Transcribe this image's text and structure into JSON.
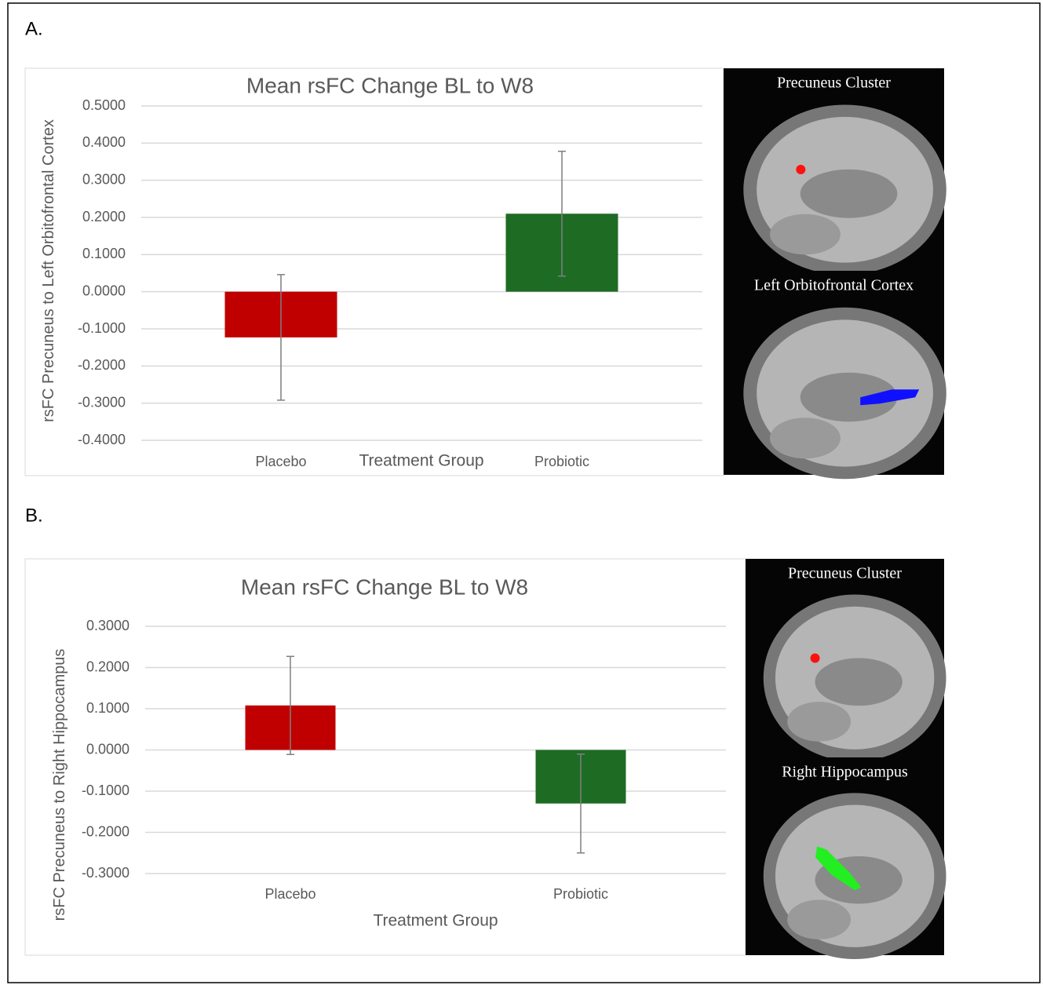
{
  "chart_data": [
    {
      "type": "bar",
      "panel_label": "A.",
      "title": "Mean rsFC Change BL to W8",
      "x_label": "Treatment Group",
      "y_label": "rsFC Precuneus to Left Orbitofrontal Cortex",
      "categories": [
        "Placebo",
        "Probiotic"
      ],
      "values": [
        -0.123,
        0.21
      ],
      "errors": [
        0.169,
        0.168
      ],
      "colors": [
        "#c00000",
        "#1e6b24"
      ],
      "ylim": [
        -0.4,
        0.5
      ],
      "yticks": [
        {
          "value": -0.4,
          "label": "-0.4000"
        },
        {
          "value": -0.3,
          "label": "-0.3000"
        },
        {
          "value": -0.2,
          "label": "-0.2000"
        },
        {
          "value": -0.1,
          "label": "-0.1000"
        },
        {
          "value": 0,
          "label": "0.0000"
        },
        {
          "value": 0.1,
          "label": "0.1000"
        },
        {
          "value": 0.2,
          "label": "0.2000"
        },
        {
          "value": 0.3,
          "label": "0.3000"
        },
        {
          "value": 0.4,
          "label": "0.4000"
        },
        {
          "value": 0.5,
          "label": "0.5000"
        }
      ],
      "grid": true,
      "image_labels": [
        "Precuneus Cluster",
        "Left Orbitofrontal Cortex"
      ]
    },
    {
      "type": "bar",
      "panel_label": "B.",
      "title": "Mean rsFC Change BL to W8",
      "x_label": "Treatment Group",
      "y_label": "rsFC Precuneus to Right Hippocampus",
      "categories": [
        "Placebo",
        "Probiotic"
      ],
      "values": [
        0.108,
        -0.13
      ],
      "errors": [
        0.119,
        0.12
      ],
      "colors": [
        "#c00000",
        "#1e6b24"
      ],
      "ylim": [
        -0.3,
        0.3
      ],
      "yticks": [
        {
          "value": -0.3,
          "label": "-0.3000"
        },
        {
          "value": -0.2,
          "label": "-0.2000"
        },
        {
          "value": -0.1,
          "label": "-0.1000"
        },
        {
          "value": 0,
          "label": "0.0000"
        },
        {
          "value": 0.1,
          "label": "0.1000"
        },
        {
          "value": 0.2,
          "label": "0.2000"
        },
        {
          "value": 0.3,
          "label": "0.3000"
        }
      ],
      "grid": true,
      "image_labels": [
        "Precuneus Cluster",
        "Right Hippocampus"
      ]
    }
  ]
}
